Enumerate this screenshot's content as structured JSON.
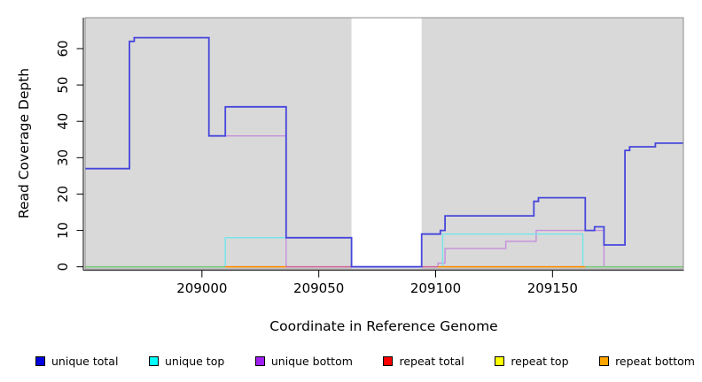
{
  "figure": {
    "xlabel": "Coordinate in Reference Genome",
    "ylabel": "Read Coverage Depth"
  },
  "legend": {
    "items": [
      {
        "label": "unique total",
        "color": "#0000DD"
      },
      {
        "label": "unique top",
        "color": "#00FFFF"
      },
      {
        "label": "unique bottom",
        "color": "#A020F0"
      },
      {
        "label": "repeat total",
        "color": "#FF0000"
      },
      {
        "label": "repeat top",
        "color": "#FFFF00"
      },
      {
        "label": "repeat bottom",
        "color": "#FFA500"
      }
    ]
  },
  "chart_data": {
    "type": "line",
    "style": "step-after read-coverage plot, gray panel with white no-data band",
    "title": "",
    "xlabel": "Coordinate in Reference Genome",
    "ylabel": "Read Coverage Depth",
    "x_ticks": [
      209000,
      209050,
      209100,
      209150
    ],
    "y_ticks": [
      0,
      10,
      20,
      30,
      40,
      50,
      60
    ],
    "x_range": [
      208950,
      209206
    ],
    "y_range": [
      -0.6,
      68.5
    ],
    "panel_bg": "#D9D9D9",
    "no_data_band": [
      209064,
      209094
    ],
    "series": [
      {
        "name": "unique total",
        "color": "#4646DC",
        "width": 1.8,
        "draw_order": 6,
        "points": [
          [
            208950,
            27
          ],
          [
            208969,
            62
          ],
          [
            208971,
            63
          ],
          [
            209003,
            36
          ],
          [
            209010,
            44
          ],
          [
            209036,
            8
          ],
          [
            209064,
            0
          ],
          [
            209094,
            9
          ],
          [
            209102,
            10
          ],
          [
            209104,
            14
          ],
          [
            209142,
            18
          ],
          [
            209144,
            19
          ],
          [
            209164,
            10
          ],
          [
            209168,
            11
          ],
          [
            209172,
            6
          ],
          [
            209181,
            32
          ],
          [
            209183,
            33
          ],
          [
            209194,
            34
          ]
        ]
      },
      {
        "name": "unique top",
        "color": "#74E6EC",
        "width": 1.4,
        "draw_order": 2,
        "points": [
          [
            208950,
            0
          ],
          [
            209010,
            8
          ],
          [
            209064,
            0
          ],
          [
            209103,
            9
          ],
          [
            209163,
            0
          ]
        ]
      },
      {
        "name": "unique bottom",
        "color": "#C48EDC",
        "width": 1.4,
        "draw_order": 1,
        "points": [
          [
            208950,
            27
          ],
          [
            208969,
            62
          ],
          [
            208971,
            63
          ],
          [
            209003,
            36
          ],
          [
            209036,
            0
          ],
          [
            209101,
            1
          ],
          [
            209104,
            5
          ],
          [
            209130,
            7
          ],
          [
            209143,
            10
          ],
          [
            209172,
            0
          ]
        ]
      },
      {
        "name": "repeat total",
        "color": "#FF3333",
        "width": 1.2,
        "draw_order": 3,
        "points": [
          [
            208950,
            0
          ]
        ]
      },
      {
        "name": "repeat top",
        "color": "#FFFF00",
        "width": 1.2,
        "draw_order": 4,
        "points": [
          [
            208950,
            0
          ]
        ]
      },
      {
        "name": "repeat bottom",
        "color": "#FF8C00",
        "width": 1.2,
        "draw_order": 5,
        "points": [
          [
            208950,
            0
          ]
        ]
      }
    ],
    "baseline_overlap_segments": [
      {
        "x1": 208950,
        "x2": 209010,
        "color": "#7CC87C"
      },
      {
        "x1": 209010,
        "x2": 209036,
        "color": "#FF8C00"
      },
      {
        "x1": 209036,
        "x2": 209064,
        "color": "#D06A9A"
      },
      {
        "x1": 209094,
        "x2": 209101,
        "color": "#D06A9A"
      },
      {
        "x1": 209101,
        "x2": 209164,
        "color": "#FF8C00"
      },
      {
        "x1": 209164,
        "x2": 209206,
        "color": "#7CC87C"
      }
    ]
  }
}
